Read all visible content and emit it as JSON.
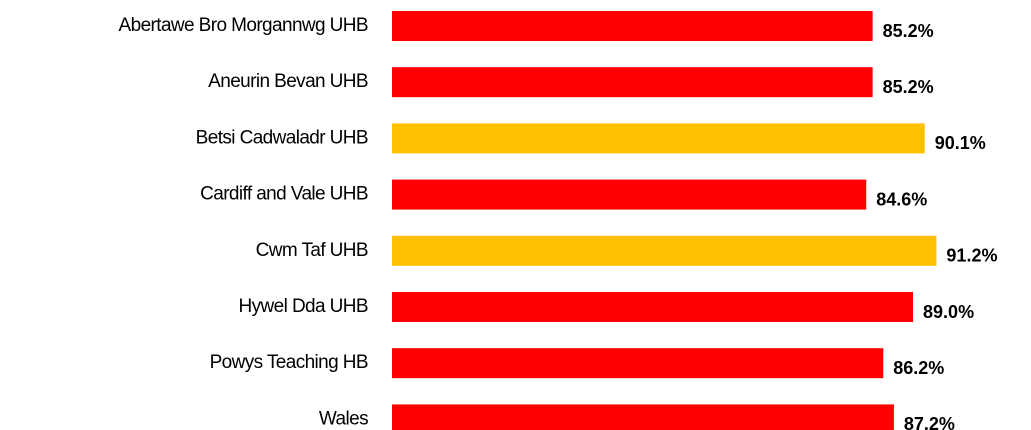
{
  "chart_data": {
    "type": "hbar",
    "categories": [
      "Abertawe Bro Morgannwg UHB",
      "Aneurin Bevan UHB",
      "Betsi Cadwaladr UHB",
      "Cardiff and Vale UHB",
      "Cwm Taf UHB",
      "Hywel Dda UHB",
      "Powys Teaching HB",
      "Wales"
    ],
    "values": [
      85.2,
      85.2,
      90.1,
      84.6,
      91.2,
      89.0,
      86.2,
      87.2
    ],
    "value_labels": [
      "85.2%",
      "85.2%",
      "90.1%",
      "84.6%",
      "91.2%",
      "89.0%",
      "86.2%",
      "87.2%"
    ],
    "colors": [
      "#ff0000",
      "#ff0000",
      "#ffc000",
      "#ff0000",
      "#ffc000",
      "#ff0000",
      "#ff0000",
      "#ff0000"
    ],
    "xlim": [
      40,
      100
    ]
  }
}
